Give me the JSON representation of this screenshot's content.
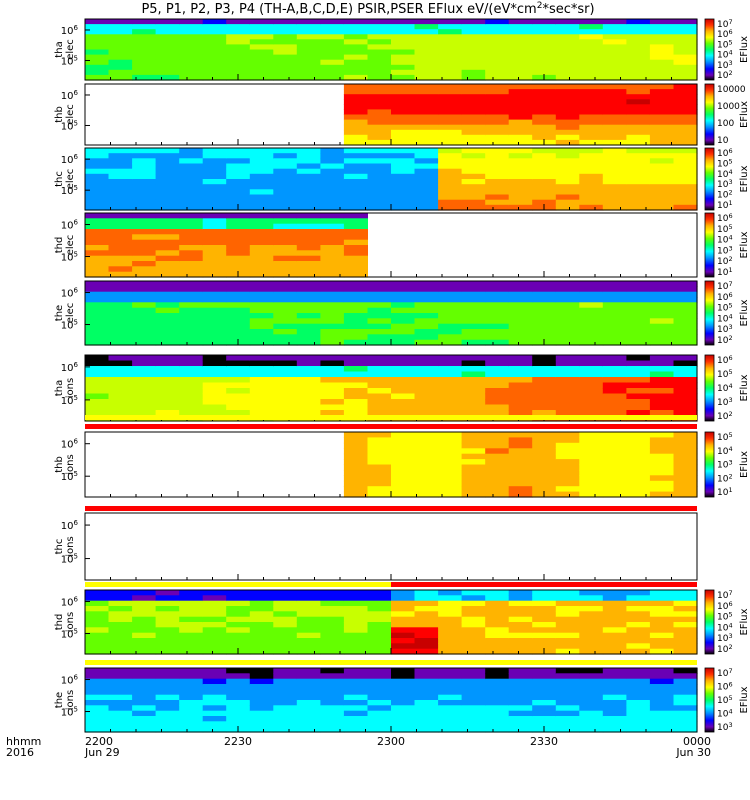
{
  "title": "P5, P1, P2, P3, P4 (TH-A,B,C,D,E) PSIR,PSER EFlux eV/(eV*cm",
  "title_sup": "2",
  "title_end": "*sec*sr)",
  "time_axis": {
    "row1_label": "hhmm",
    "row2_label": "2016",
    "ticks": [
      {
        "label": "2200",
        "date": "Jun 29"
      },
      {
        "label": "2230",
        "date": ""
      },
      {
        "label": "2300",
        "date": ""
      },
      {
        "label": "2330",
        "date": ""
      },
      {
        "label": "0000",
        "date": "Jun 30"
      }
    ]
  },
  "colorbar_label": "EFlux",
  "chart_data": {
    "type": "heatmap",
    "x_range": [
      "2016-06-29 22:00",
      "2016-06-30 00:00"
    ],
    "panels": [
      {
        "label1": "tha",
        "label2": "elec",
        "yticks": [
          "10^6",
          "10^5"
        ],
        "cbar": [
          "10^7",
          "10^6",
          "10^5",
          "10^4",
          "10^3",
          "10^2"
        ],
        "cmin": 2,
        "cmax": 7
      },
      {
        "label1": "thb",
        "label2": "elec",
        "yticks": [
          "10^6",
          "10^5"
        ],
        "cbar": [
          "10000",
          "1000",
          "100",
          "10"
        ],
        "cmin": 1,
        "cmax": 4.5,
        "data_start": "22:50"
      },
      {
        "label1": "thc",
        "label2": "elec",
        "yticks": [
          "10^6",
          "10^5"
        ],
        "cbar": [
          "10^6",
          "10^5",
          "10^4",
          "10^3",
          "10^2",
          "10^1"
        ],
        "cmin": 1,
        "cmax": 6.3,
        "mode_change": "23:07"
      },
      {
        "label1": "thd",
        "label2": "elec",
        "yticks": [
          "10^6",
          "10^5"
        ],
        "cbar": [
          "10^6",
          "10^5",
          "10^4",
          "10^3",
          "10^2",
          "10^1"
        ],
        "cmin": 1,
        "cmax": 6.3,
        "data_end": "22:57"
      },
      {
        "label1": "the",
        "label2": "elec",
        "yticks": [
          "10^6",
          "10^5"
        ],
        "cbar": [
          "10^7",
          "10^6",
          "10^5",
          "10^4",
          "10^3",
          "10^2"
        ],
        "cmin": 2,
        "cmax": 7.3
      },
      {
        "label1": "tha",
        "label2": "ions",
        "yticks": [
          "10^6",
          "10^5"
        ],
        "cbar": [
          "10^6",
          "10^5",
          "10^4",
          "10^3",
          "10^2"
        ],
        "cmin": 2,
        "cmax": 6.3
      },
      {
        "label1": "thb",
        "label2": "ions",
        "yticks": [
          "10^6",
          "10^5"
        ],
        "cbar": [
          "10^5",
          "10^4",
          "10^3",
          "10^2",
          "10^1"
        ],
        "cmin": 1,
        "cmax": 5.3,
        "data_start": "22:50"
      },
      {
        "label1": "thc",
        "label2": "ions",
        "yticks": [
          "10^6",
          "10^5"
        ],
        "cbar": [],
        "empty": true
      },
      {
        "label1": "thd",
        "label2": "ions",
        "yticks": [
          "10^6",
          "10^5"
        ],
        "cbar": [
          "10^7",
          "10^6",
          "10^5",
          "10^4",
          "10^3",
          "10^2"
        ],
        "cmin": 2,
        "cmax": 7.3,
        "mode_change": "23:00"
      },
      {
        "label1": "the",
        "label2": "ions",
        "yticks": [
          "10^6",
          "10^5"
        ],
        "cbar": [
          "10^7",
          "10^6",
          "10^5",
          "10^4",
          "10^3"
        ],
        "cmin": 3,
        "cmax": 7.3
      }
    ],
    "mode_bars": [
      {
        "after_panel": 5,
        "segments": [
          {
            "color": "#ffff00",
            "end": "24:00"
          }
        ]
      },
      {
        "after_panel": 6,
        "segments": [
          {
            "color": "#ff0000",
            "end": "24:00"
          }
        ]
      },
      {
        "after_panel": 7,
        "segments": [
          {
            "color": "#ff0000",
            "end": "24:00"
          }
        ]
      },
      {
        "after_panel": 8,
        "segments": [
          {
            "color": "#ffff00",
            "end": "23:00"
          },
          {
            "color": "#ff0000",
            "end": "24:00"
          }
        ]
      },
      {
        "after_panel": 9,
        "segments": [
          {
            "color": "#ffff00",
            "end": "24:00"
          }
        ]
      }
    ],
    "colormap": [
      "#000000",
      "#6a00b4",
      "#0000ff",
      "#0096ff",
      "#00ffff",
      "#00ff64",
      "#64ff00",
      "#c8ff00",
      "#ffff00",
      "#ffb400",
      "#ff6400",
      "#ff0000",
      "#c80000"
    ]
  }
}
